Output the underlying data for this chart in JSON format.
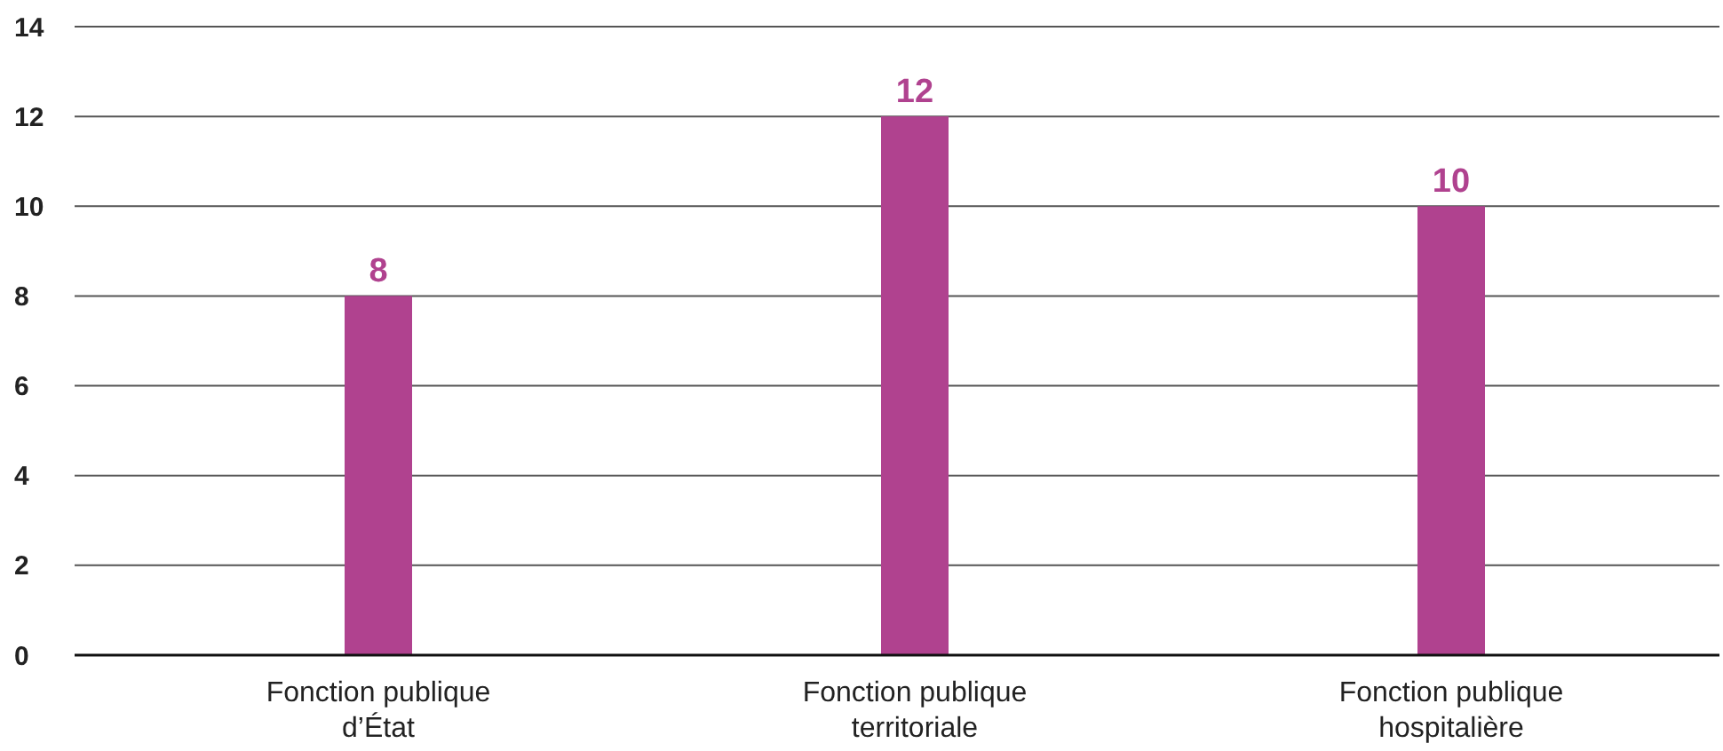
{
  "chart_data": {
    "type": "bar",
    "categories": [
      "Fonction publique d’État",
      "Fonction publique territoriale",
      "Fonction publique hospitalière"
    ],
    "values": [
      8,
      12,
      10
    ],
    "color": "#b0428f",
    "ylim": [
      0,
      14
    ],
    "yticks": [
      0,
      2,
      4,
      6,
      8,
      10,
      12,
      14
    ],
    "grid": "y",
    "data_labels": true
  }
}
